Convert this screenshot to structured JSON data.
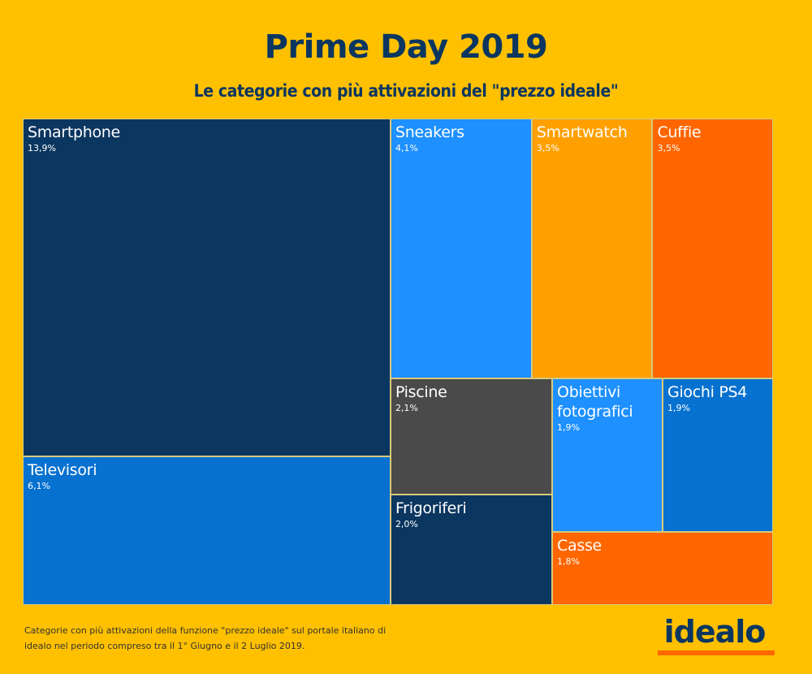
{
  "header": {
    "title": "Prime Day 2019",
    "subtitle": "Le categorie con più attivazioni del \"prezzo ideale\""
  },
  "chart_data": {
    "type": "treemap",
    "title": "Prime Day 2019",
    "subtitle": "Le categorie con più attivazioni del \"prezzo ideale\"",
    "unit": "%",
    "items": [
      {
        "label": "Smartphone",
        "value": 13.9,
        "value_label": "13,9%",
        "color": "#0B3660"
      },
      {
        "label": "Televisori",
        "value": 6.1,
        "value_label": "6,1%",
        "color": "#0771D0"
      },
      {
        "label": "Sneakers",
        "value": 4.1,
        "value_label": "4,1%",
        "color": "#1E90FF"
      },
      {
        "label": "Smartwatch",
        "value": 3.5,
        "value_label": "3,5%",
        "color": "#FFA000"
      },
      {
        "label": "Cuffie",
        "value": 3.5,
        "value_label": "3,5%",
        "color": "#FF6600"
      },
      {
        "label": "Piscine",
        "value": 2.1,
        "value_label": "2,1%",
        "color": "#4A4A4A"
      },
      {
        "label": "Frigoriferi",
        "value": 2.0,
        "value_label": "2,0%",
        "color": "#0B3660"
      },
      {
        "label": "Obiettivi fotografici",
        "value": 1.9,
        "value_label": "1,9%",
        "color": "#1E90FF"
      },
      {
        "label": "Giochi PS4",
        "value": 1.9,
        "value_label": "1,9%",
        "color": "#0771D0"
      },
      {
        "label": "Casse",
        "value": 1.8,
        "value_label": "1,8%",
        "color": "#FF6600"
      }
    ]
  },
  "footer": {
    "note": "Categorie con più attivazioni della funzione \"prezzo ideale\" sul portale italiano di idealo nel periodo compreso tra il 1° Giugno e il 2 Luglio 2019.",
    "logo_text": "idealo",
    "logo_bar_color": "#FF6600"
  }
}
